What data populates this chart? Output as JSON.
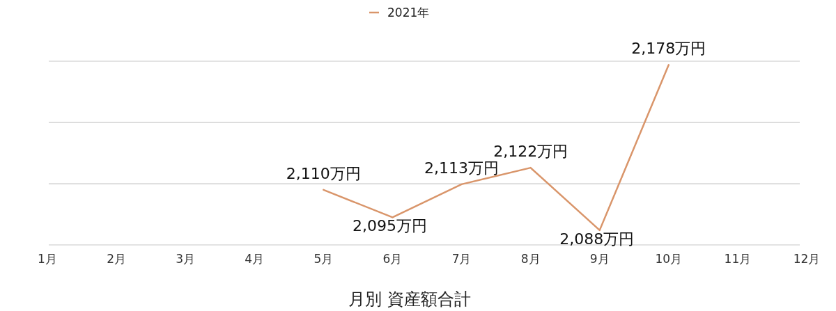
{
  "chart_data": {
    "type": "line",
    "xlabel": "月別 資産額合計",
    "categories": [
      "1月",
      "2月",
      "3月",
      "4月",
      "5月",
      "6月",
      "7月",
      "8月",
      "9月",
      "10月",
      "11月",
      "12月"
    ],
    "series": [
      {
        "name": "2021年",
        "color": "#d9956a",
        "values": [
          null,
          null,
          null,
          null,
          2110,
          2095,
          2113,
          2122,
          2088,
          2178,
          null,
          null
        ],
        "value_labels": [
          null,
          null,
          null,
          null,
          "2,110万円",
          "2,095万円",
          "2,113万円",
          "2,122万円",
          "2,088万円",
          "2,178万円",
          null,
          null
        ]
      }
    ],
    "ylim": [
      2080,
      2180
    ],
    "yticks": [
      {
        "value": 2080,
        "label": null
      },
      {
        "value": 2113.3,
        "label": null
      },
      {
        "value": 2146.7,
        "label": null
      },
      {
        "value": 2180,
        "label": null
      }
    ],
    "grid": "y",
    "legend": "top",
    "tick_labels": "x"
  }
}
